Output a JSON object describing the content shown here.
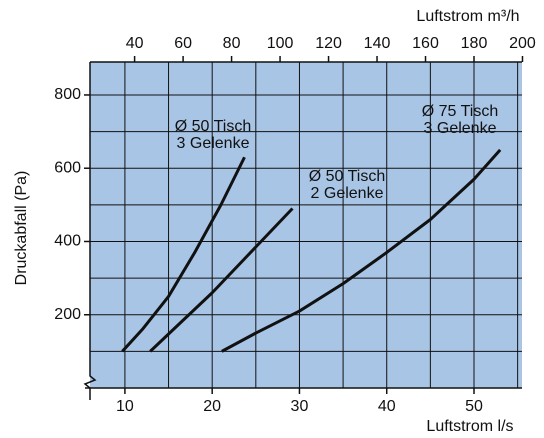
{
  "chart_data": {
    "type": "line",
    "ylabel": "Druckabfall (Pa)",
    "xlabel": "Luftstrom  l/s",
    "x2label": "Luftstrom  m³/h",
    "xlim": [
      6,
      55.5
    ],
    "ylim": [
      0,
      890
    ],
    "x2lim": [
      21.6,
      199.8
    ],
    "xticks": [
      10,
      20,
      30,
      40,
      50
    ],
    "yticks": [
      200,
      400,
      600,
      800
    ],
    "x2ticks": [
      40,
      60,
      80,
      100,
      120,
      140,
      160,
      180,
      200
    ],
    "x_grid": [
      10,
      15,
      20,
      25,
      30,
      35,
      40,
      45,
      50,
      55
    ],
    "y_grid": [
      100,
      200,
      300,
      400,
      500,
      600,
      700,
      800
    ],
    "grid": true,
    "background": "#a9c5e6",
    "series": [
      {
        "label": [
          "Ø 50 Tisch",
          "3 Gelenke"
        ],
        "color": "#111111",
        "x": [
          9.7,
          12,
          15,
          18,
          21,
          23.7
        ],
        "values": [
          100,
          160,
          250,
          370,
          500,
          630
        ]
      },
      {
        "label": [
          "Ø 50 Tisch",
          "2 Gelenke"
        ],
        "color": "#111111",
        "x": [
          12.9,
          16,
          20,
          24,
          29.2
        ],
        "values": [
          100,
          170,
          260,
          360,
          490
        ]
      },
      {
        "label": [
          "Ø 75 Tisch",
          "3 Gelenke"
        ],
        "color": "#111111",
        "x": [
          21.1,
          25,
          30,
          35,
          40,
          45,
          50,
          53
        ],
        "values": [
          100,
          150,
          210,
          285,
          370,
          460,
          570,
          650
        ]
      }
    ]
  }
}
